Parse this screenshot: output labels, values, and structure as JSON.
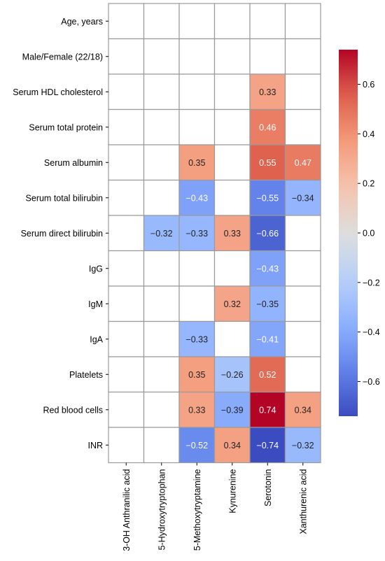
{
  "chart_data": {
    "type": "heatmap",
    "title": "",
    "xlabel": "",
    "ylabel": "",
    "rows": [
      "Age, years",
      "Male/Female (22/18)",
      "Serum HDL cholesterol",
      "Serum total protein",
      "Serum albumin",
      "Serum total bilirubin",
      "Serum direct bilirubin",
      "IgG",
      "IgM",
      "IgA",
      "Platelets",
      "Red blood cells",
      "INR"
    ],
    "columns": [
      "3-OH Anthranilic acid",
      "5-Hydroxytryptophan",
      "5-Methoxytryptamine",
      "Kynurenine",
      "Serotonin",
      "Xanthurenic acid"
    ],
    "values": [
      [
        null,
        null,
        null,
        null,
        null,
        null
      ],
      [
        null,
        null,
        null,
        null,
        null,
        null
      ],
      [
        null,
        null,
        null,
        null,
        0.33,
        null
      ],
      [
        null,
        null,
        null,
        null,
        0.46,
        null
      ],
      [
        null,
        null,
        0.35,
        null,
        0.55,
        0.47
      ],
      [
        null,
        null,
        -0.43,
        null,
        -0.55,
        -0.34
      ],
      [
        null,
        -0.32,
        -0.33,
        0.33,
        -0.66,
        null
      ],
      [
        null,
        null,
        null,
        null,
        -0.43,
        null
      ],
      [
        null,
        null,
        null,
        0.32,
        -0.35,
        null
      ],
      [
        null,
        null,
        -0.33,
        null,
        -0.41,
        null
      ],
      [
        null,
        null,
        0.35,
        -0.26,
        0.52,
        null
      ],
      [
        null,
        null,
        0.33,
        -0.39,
        0.74,
        0.34
      ],
      [
        null,
        null,
        -0.52,
        0.34,
        -0.74,
        -0.32
      ]
    ],
    "colorbar": {
      "colormap": "coolwarm",
      "vmin": -0.74,
      "vmax": 0.74,
      "ticks": [
        0.6,
        0.4,
        0.2,
        0.0,
        -0.2,
        -0.4,
        -0.6
      ],
      "tick_labels": [
        "0.6",
        "0.4",
        "0.2",
        "0.0",
        "−0.2",
        "−0.4",
        "−0.6"
      ]
    },
    "grid": true,
    "legend": "right"
  }
}
